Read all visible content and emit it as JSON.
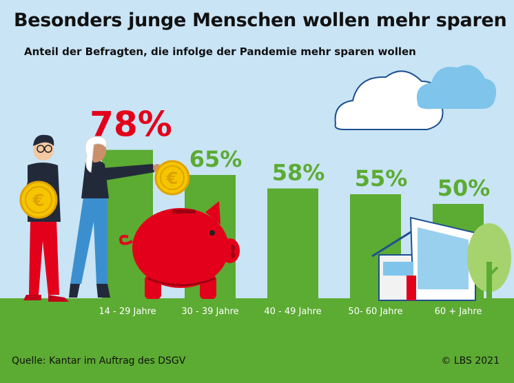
{
  "header": {
    "title": "Besonders junge Menschen wollen mehr sparen",
    "subtitle": "Anteil der Befragten, die infolge der Pandemie mehr sparen wollen"
  },
  "footer": {
    "source": "Quelle: Kantar im Auftrag des DSGV",
    "copyright": "© LBS 2021"
  },
  "colors": {
    "sky": "#c9e4f5",
    "bar": "#5cab32",
    "ground": "#5cab32",
    "highlight_label": "#e3001b",
    "label": "#5cab32"
  },
  "chart_data": {
    "type": "bar",
    "categories": [
      "14 - 29 Jahre",
      "30 - 39 Jahre",
      "40 - 49 Jahre",
      "50- 60 Jahre",
      "60 + Jahre"
    ],
    "values": [
      78,
      65,
      58,
      55,
      50
    ],
    "value_labels": [
      "78%",
      "65%",
      "58%",
      "55%",
      "50%"
    ],
    "title": "Besonders junge Menschen wollen mehr sparen",
    "subtitle": "Anteil der Befragten, die infolge der Pandemie mehr sparen wollen",
    "xlabel": "",
    "ylabel": "",
    "grid": false,
    "legend": "none"
  }
}
